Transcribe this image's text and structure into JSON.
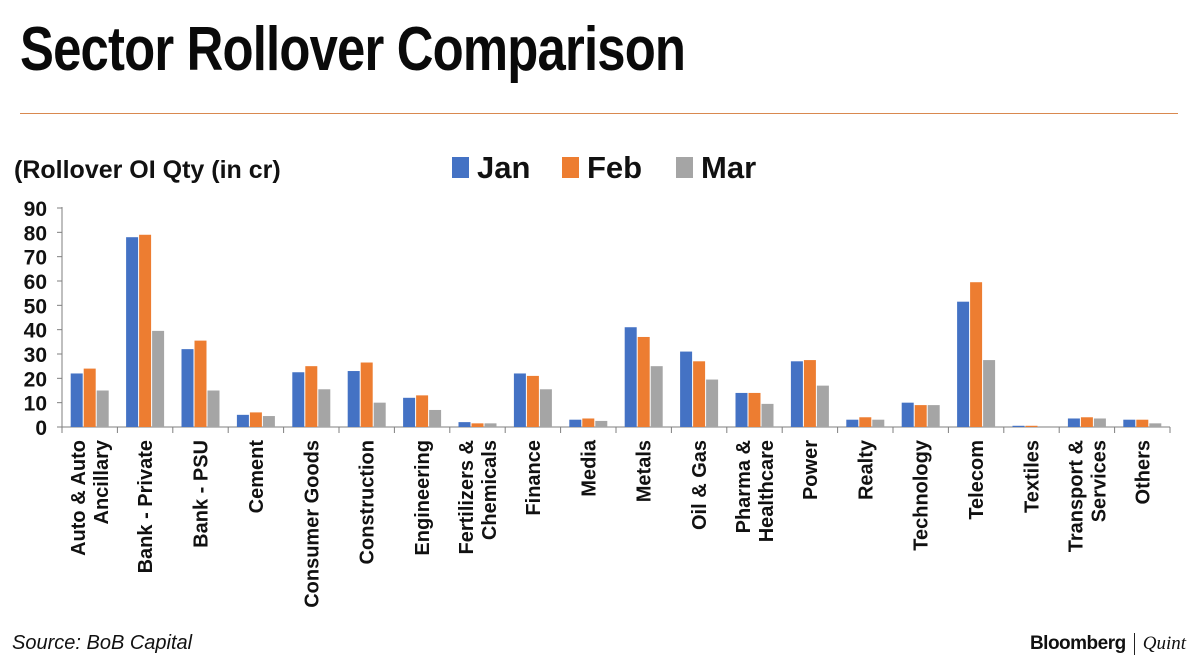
{
  "title": "Sector Rollover Comparison",
  "source": "Source: BoB Capital",
  "brand": {
    "name": "Bloomberg",
    "partner": "Quint"
  },
  "colors": {
    "Jan": "#4472c4",
    "Feb": "#ed7d31",
    "Mar": "#a5a5a5",
    "rule": "#d9894f"
  },
  "chart_data": {
    "type": "bar",
    "ylabel": "(Rollover OI Qty (in cr)",
    "ylim": [
      0,
      90
    ],
    "yticks": [
      0,
      10,
      20,
      30,
      40,
      50,
      60,
      70,
      80,
      90
    ],
    "grid": false,
    "legend": "top",
    "categories": [
      [
        "Auto & Auto",
        "Ancillary"
      ],
      [
        "Bank - Private"
      ],
      [
        "Bank - PSU"
      ],
      [
        "Cement"
      ],
      [
        "Consumer Goods"
      ],
      [
        "Construction"
      ],
      [
        "Engineering"
      ],
      [
        "Fertilizers &",
        "Chemicals"
      ],
      [
        "Finance"
      ],
      [
        "Media"
      ],
      [
        "Metals"
      ],
      [
        "Oil & Gas"
      ],
      [
        "Pharma &",
        "Healthcare"
      ],
      [
        "Power"
      ],
      [
        "Realty"
      ],
      [
        "Technology"
      ],
      [
        "Telecom"
      ],
      [
        "Textiles"
      ],
      [
        "Transport &",
        "Services"
      ],
      [
        "Others"
      ]
    ],
    "series": [
      {
        "name": "Jan",
        "values": [
          22,
          78,
          32,
          5,
          22.5,
          23,
          12,
          2,
          22,
          3,
          41,
          31,
          14,
          27,
          3,
          10,
          51.5,
          0.5,
          3.5,
          3
        ]
      },
      {
        "name": "Feb",
        "values": [
          24,
          79,
          35.5,
          6,
          25,
          26.5,
          13,
          1.5,
          21,
          3.5,
          37,
          27,
          14,
          27.5,
          4,
          9,
          59.5,
          0.5,
          4,
          3
        ]
      },
      {
        "name": "Mar",
        "values": [
          15,
          39.5,
          15,
          4.5,
          15.5,
          10,
          7,
          1.5,
          15.5,
          2.5,
          25,
          19.5,
          9.5,
          17,
          3,
          9,
          27.5,
          0.3,
          3.5,
          1.5
        ]
      }
    ]
  }
}
